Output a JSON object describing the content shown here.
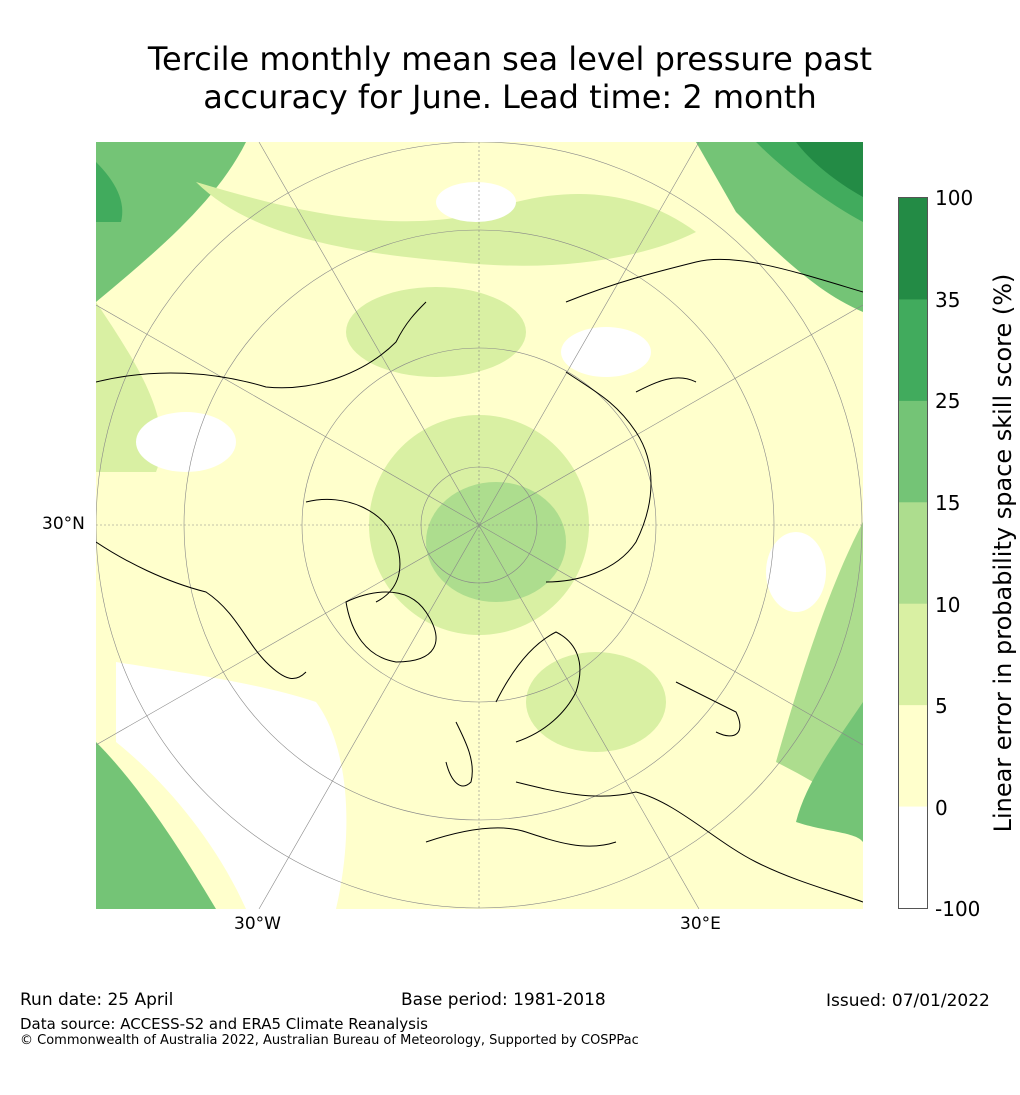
{
  "title_line1": "Tercile monthly mean sea level pressure past",
  "title_line2": "accuracy for June. Lead time: 2 month",
  "map": {
    "lat_labels": [
      "30°N"
    ],
    "lon_labels": [
      "30°W",
      "30°E"
    ]
  },
  "colorbar": {
    "label": "Linear error in probability space skill score (%)",
    "ticks": [
      "100",
      "35",
      "25",
      "15",
      "10",
      "5",
      "0",
      "-100"
    ],
    "bins": [
      {
        "range": "35 to 100",
        "color": "#238b45"
      },
      {
        "range": "25 to 35",
        "color": "#41ab5d"
      },
      {
        "range": "15 to 25",
        "color": "#74c476"
      },
      {
        "range": "10 to 15",
        "color": "#addd8e"
      },
      {
        "range": "5 to 10",
        "color": "#d9f0a3"
      },
      {
        "range": "0 to 5",
        "color": "#ffffcc"
      },
      {
        "range": "-100 to 0",
        "color": "#ffffff"
      }
    ]
  },
  "footer": {
    "run_date": "Run date: 25 April",
    "base_period": "Base period: 1981-2018",
    "issued": "Issued: 07/01/2022",
    "data_source": "Data source: ACCESS-S2 and ERA5 Climate Reanalysis",
    "copyright": "© Commonwealth of Australia 2022, Australian Bureau of Meteorology, Supported by COSPPac"
  }
}
